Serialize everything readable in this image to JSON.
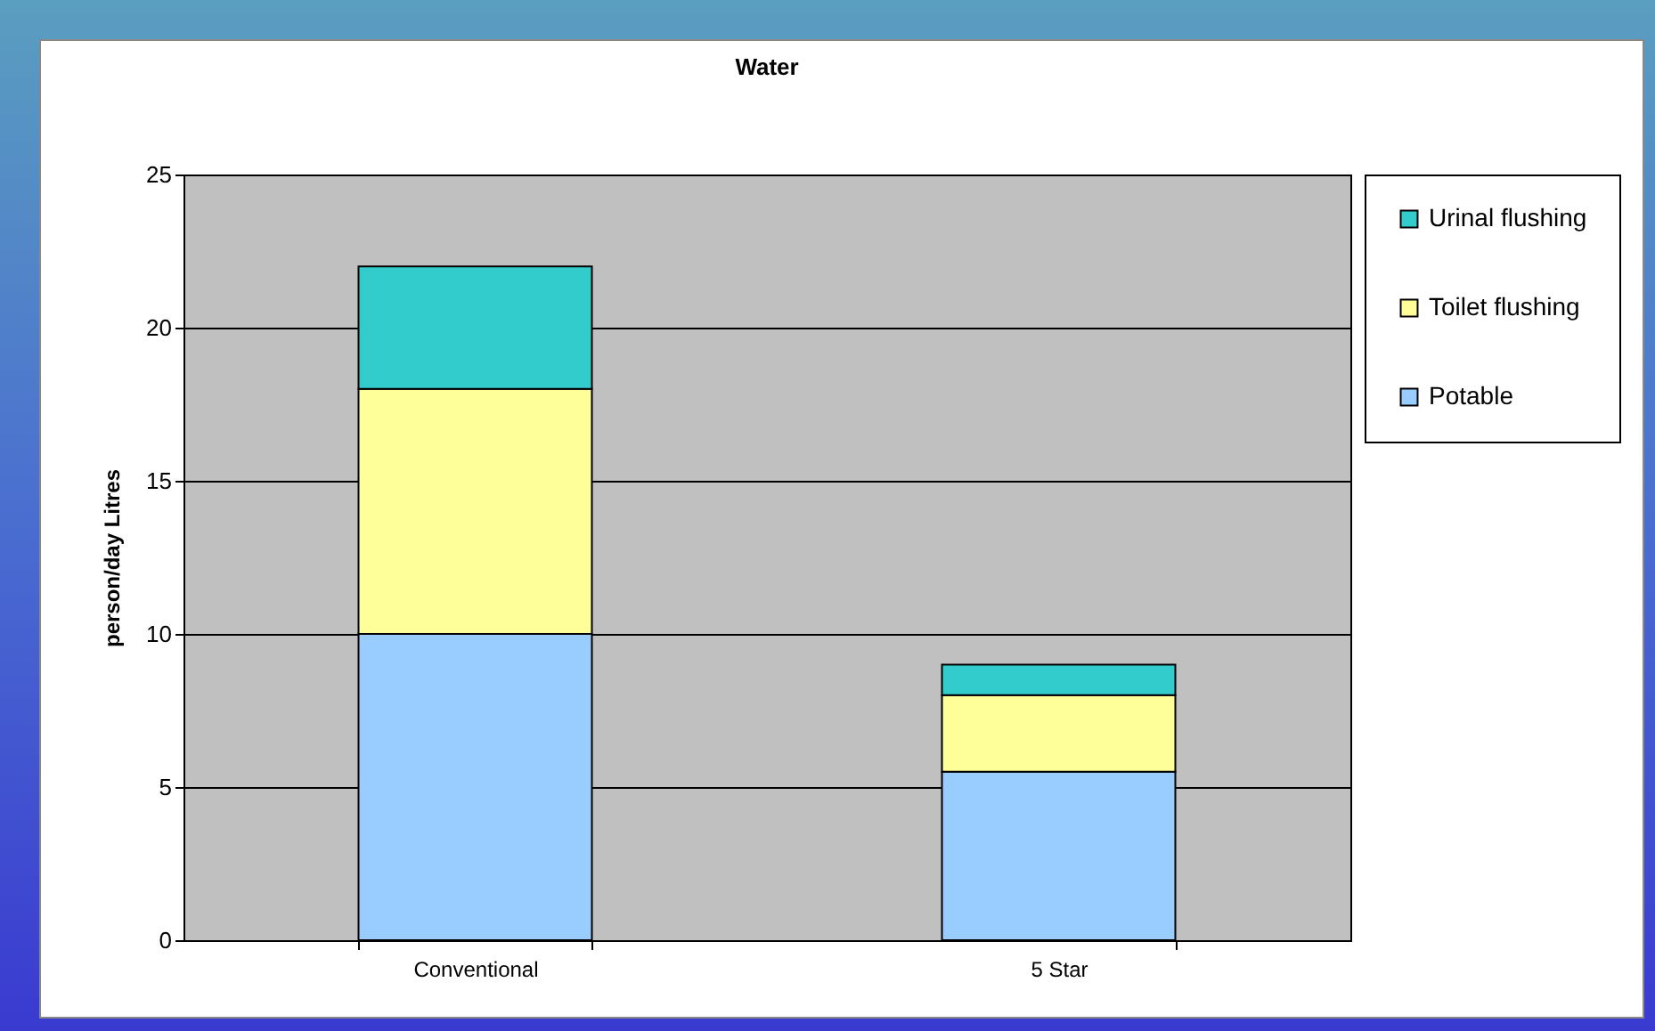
{
  "chart_data": {
    "type": "bar",
    "title": "Water",
    "ylabel": "person/day  Litres",
    "categories": [
      "Conventional",
      "5 Star"
    ],
    "stacked": true,
    "series": [
      {
        "name": "Potable",
        "color": "#99ccff",
        "values": [
          10,
          5.5
        ]
      },
      {
        "name": "Toilet flushing",
        "color": "#ffff99",
        "values": [
          8,
          2.5
        ]
      },
      {
        "name": "Urinal flushing",
        "color": "#33cccc",
        "values": [
          4,
          1
        ]
      }
    ],
    "ylim": [
      0,
      25
    ],
    "yticks": [
      0,
      5,
      10,
      15,
      20,
      25
    ],
    "grid": "y",
    "legend": "right"
  }
}
